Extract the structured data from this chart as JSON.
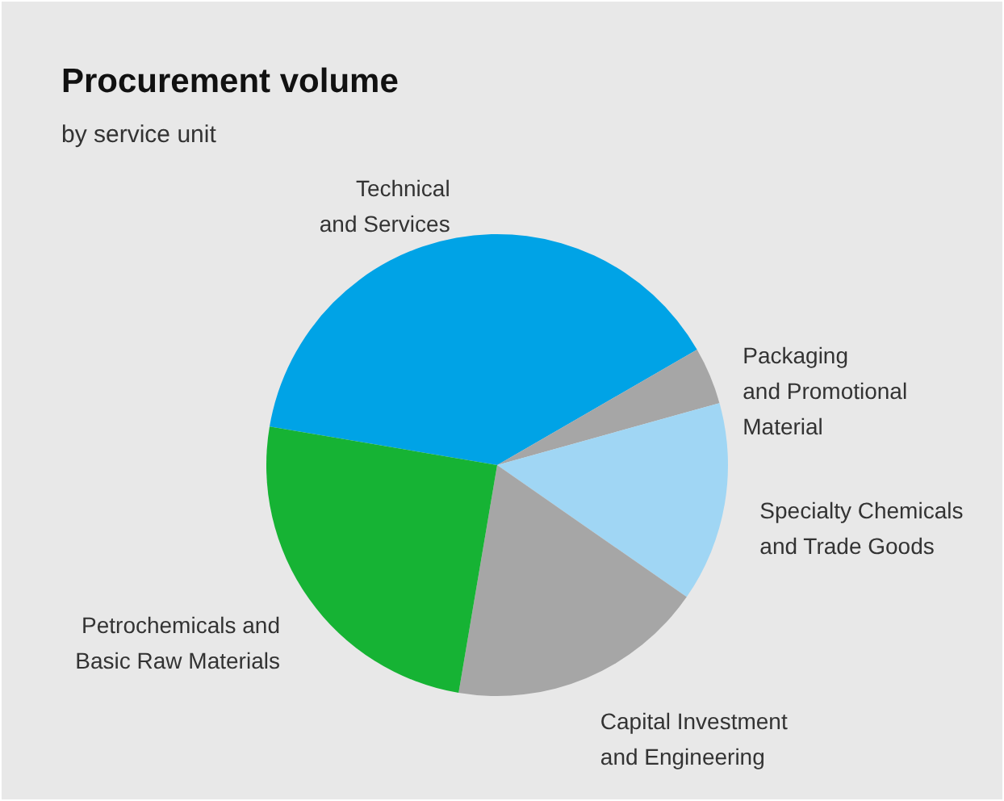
{
  "chart_data": {
    "type": "pie",
    "title": "Procurement volume",
    "subtitle": "by service unit",
    "categories": [
      "Technical\nand Services",
      "Packaging\nand Promotional\nMaterial",
      "Specialty Chemicals\nand Trade Goods",
      "Capital Investment\nand Engineering",
      "Petrochemicals and\nBasic Raw Materials"
    ],
    "values": [
      39,
      4,
      14,
      18,
      25
    ],
    "colors": [
      "#00a3e6",
      "#a6a6a6",
      "#a0d6f4",
      "#a6a6a6",
      "#16b334"
    ]
  }
}
